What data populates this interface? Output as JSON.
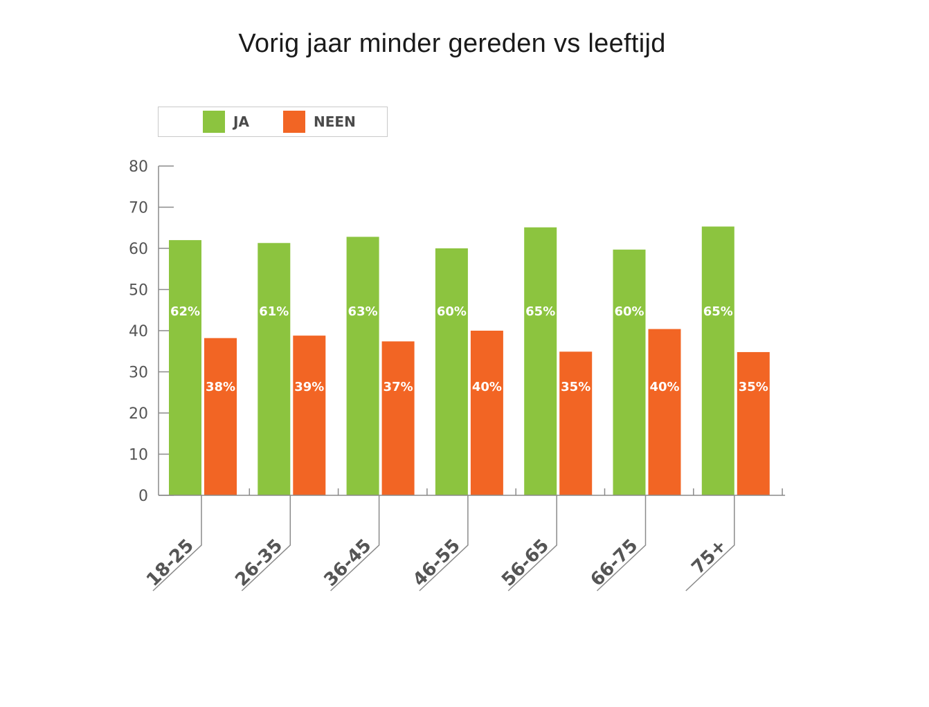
{
  "chart_data": {
    "type": "bar",
    "title": "Vorig jaar minder gereden vs leeftijd",
    "xlabel": "",
    "ylabel": "",
    "ylim": [
      0,
      80
    ],
    "yticks": [
      0,
      10,
      20,
      30,
      40,
      50,
      60,
      70,
      80
    ],
    "categories": [
      "18-25",
      "26-35",
      "36-45",
      "46-55",
      "56-65",
      "66-75",
      "75+"
    ],
    "series": [
      {
        "name": "JA",
        "color": "#8cc43f",
        "values": [
          62,
          61.3,
          62.8,
          60,
          65.1,
          59.7,
          65.3
        ],
        "labels": [
          "62%",
          "61%",
          "63%",
          "60%",
          "65%",
          "60%",
          "65%"
        ]
      },
      {
        "name": "NEEN",
        "color": "#f26524",
        "values": [
          38.2,
          38.8,
          37.4,
          40,
          34.9,
          40.4,
          34.8
        ],
        "labels": [
          "38%",
          "39%",
          "37%",
          "40%",
          "35%",
          "40%",
          "35%"
        ]
      }
    ],
    "legend_position": "top-left",
    "grid": false
  }
}
